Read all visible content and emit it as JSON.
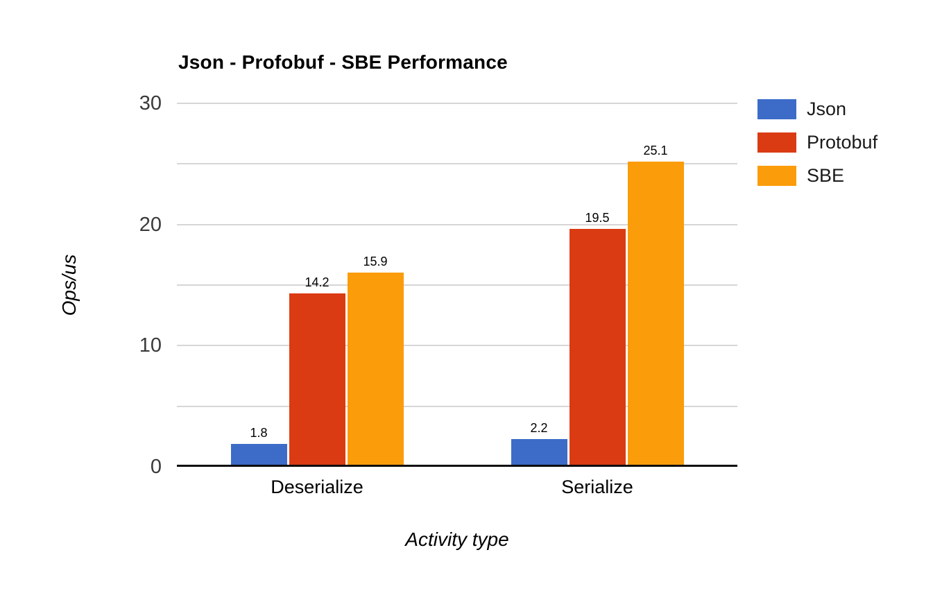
{
  "chart_data": {
    "type": "bar",
    "title": "Json - Profobuf - SBE Performance",
    "xlabel": "Activity type",
    "ylabel": "Ops/us",
    "categories": [
      "Deserialize",
      "Serialize"
    ],
    "series": [
      {
        "name": "Json",
        "color": "#3C6CC8",
        "values": [
          1.8,
          2.2
        ]
      },
      {
        "name": "Protobuf",
        "color": "#DA3B13",
        "values": [
          14.2,
          19.5
        ]
      },
      {
        "name": "SBE",
        "color": "#FB9C0B",
        "values": [
          15.9,
          25.1
        ]
      }
    ],
    "ylim": [
      0,
      30
    ],
    "ytick_labels": [
      0,
      10,
      20,
      30
    ],
    "gridline_step": 5,
    "grid": true,
    "legend_position": "right",
    "colors": {
      "gridline": "#d6d6d6",
      "axis_line": "#0d0d0d",
      "tick_text": "#3a3a3a",
      "label_text": "#000000",
      "background": "#ffffff"
    }
  }
}
